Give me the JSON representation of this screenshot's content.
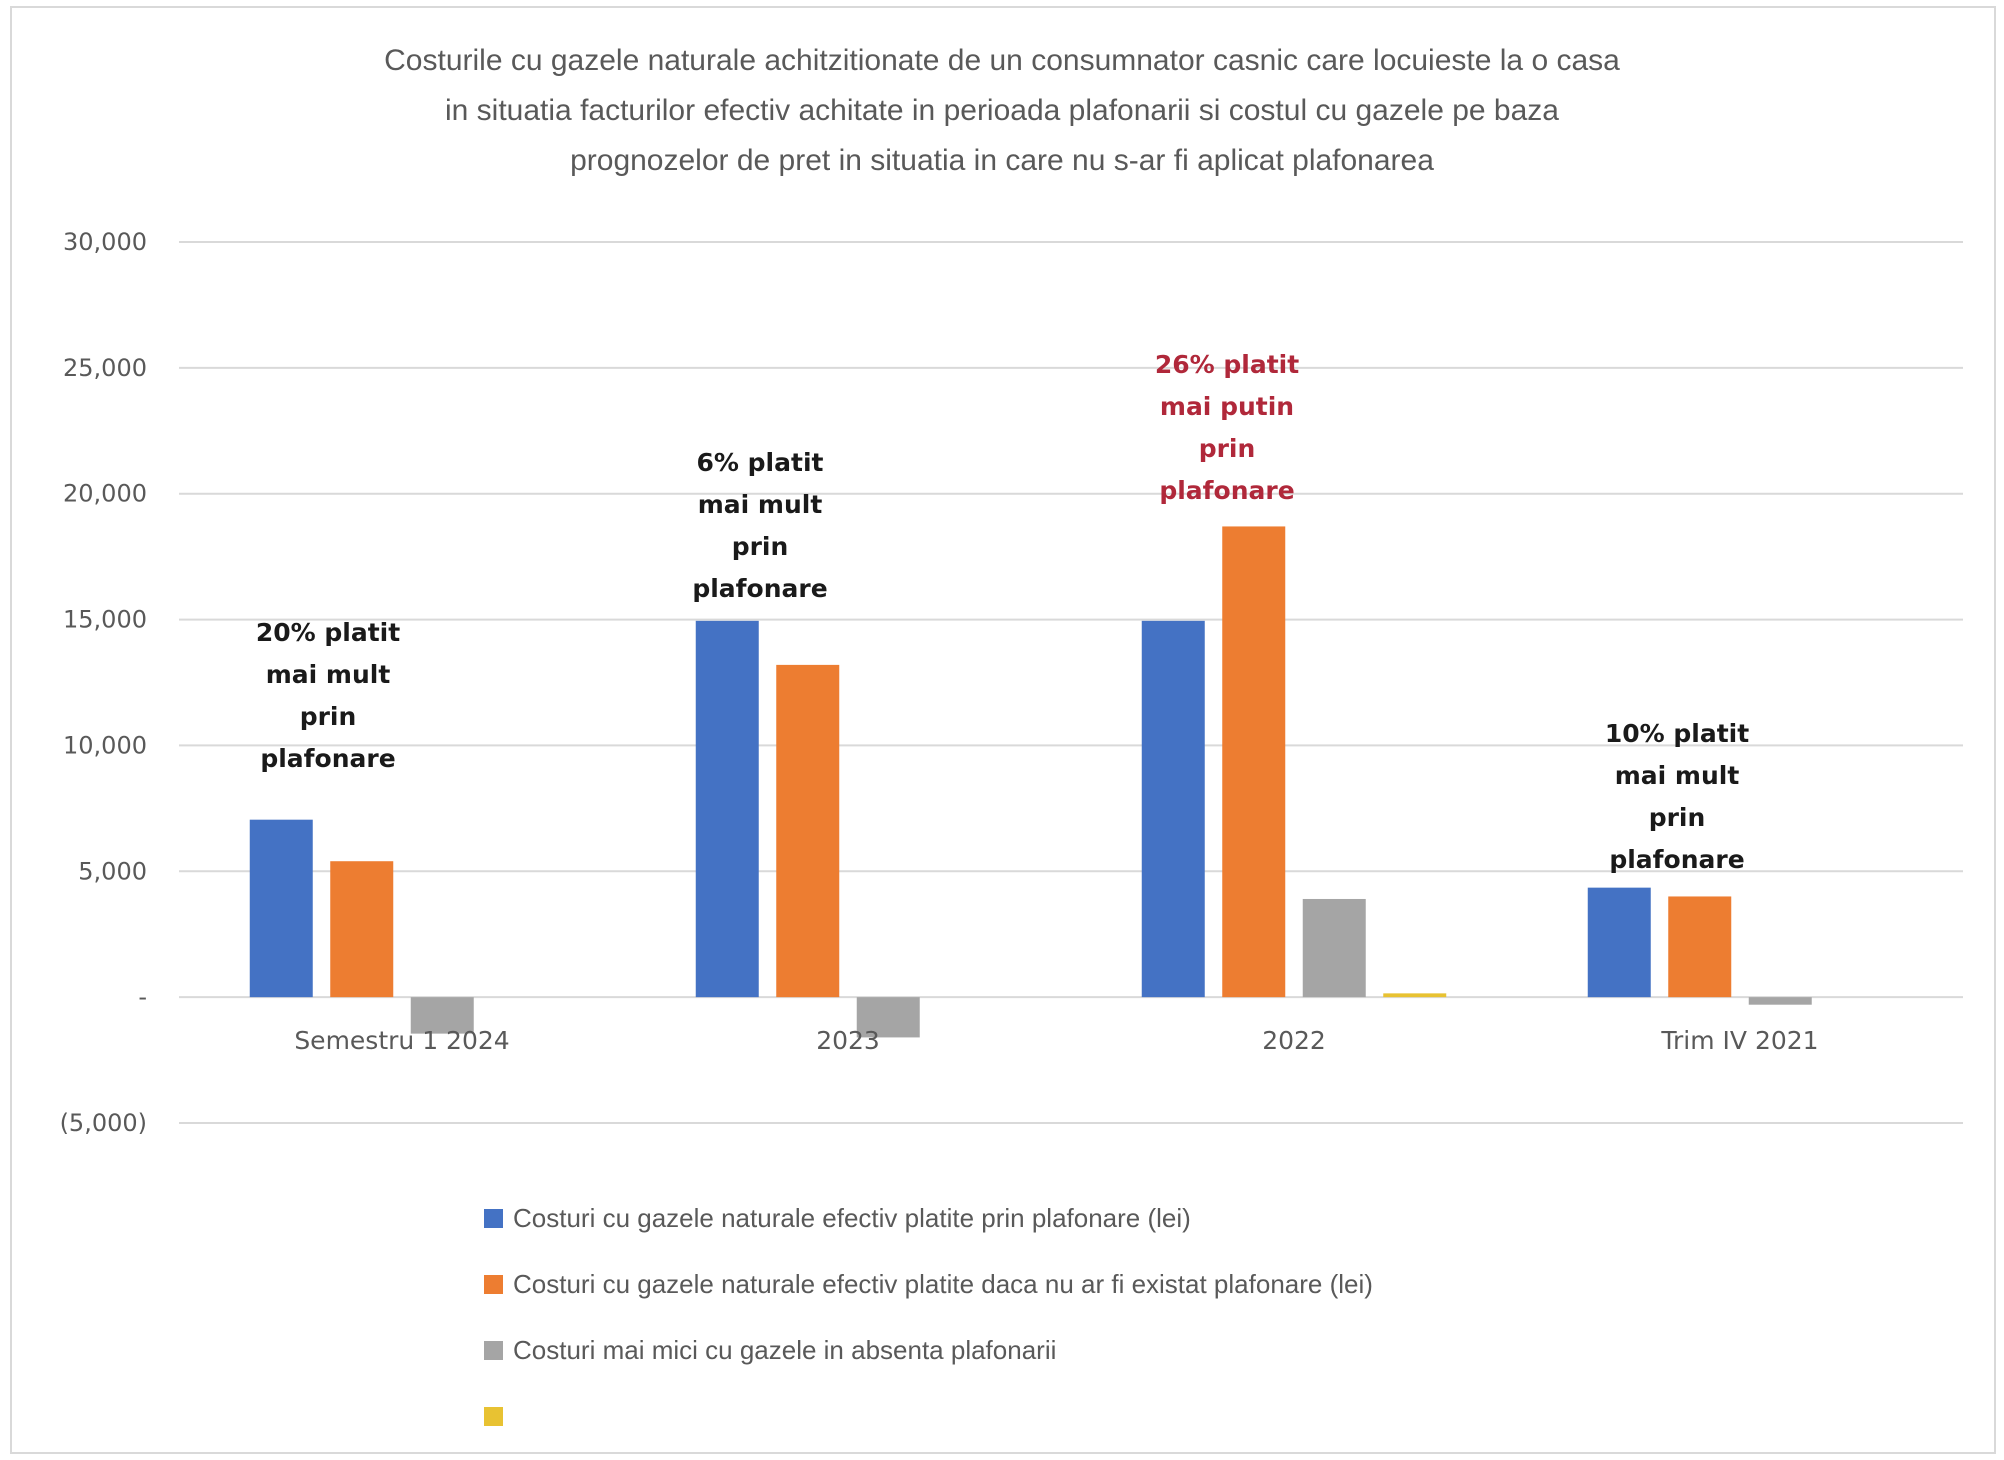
{
  "chart_data": {
    "type": "bar",
    "title_lines": [
      "Costurile cu gazele naturale achitzitionate de un consumnator casnic care locuieste la o casa",
      "in situatia facturilor efectiv achitate in perioada plafonarii si costul cu gazele pe baza",
      "prognozelor de pret in situatia in care nu s-ar fi aplicat  plafonarea"
    ],
    "xlabel": "",
    "ylabel": "",
    "categories": [
      "Semestru 1 2024",
      "2023",
      "2022",
      "Trim IV 2021"
    ],
    "ylim": [
      -5000,
      30000
    ],
    "yticks": [
      30000,
      25000,
      20000,
      15000,
      10000,
      5000,
      0,
      -5000
    ],
    "ytick_labels": [
      "30,000",
      "25,000",
      "20,000",
      "15,000",
      "10,000",
      "5,000",
      "-",
      "(5,000)"
    ],
    "grid": true,
    "legend_position": "bottom",
    "series": [
      {
        "name": "Costuri cu gazele naturale efectiv platite prin plafonare (lei)",
        "color": "#4472C4",
        "values": [
          7050,
          14950,
          14950,
          4350
        ]
      },
      {
        "name": "Costuri cu gazele naturale efectiv platite daca nu ar fi existat plafonare (lei)",
        "color": "#ED7D31",
        "values": [
          5400,
          13200,
          18700,
          4000
        ]
      },
      {
        "name": "Costuri mai mici cu gazele in absenta plafonarii",
        "color": "#A5A5A5",
        "values": [
          -1450,
          -1600,
          3900,
          -300
        ]
      },
      {
        "name": "",
        "color": "#E8C232",
        "values": [
          0,
          0,
          150,
          0
        ]
      }
    ],
    "annotations": [
      {
        "category": "Semestru 1 2024",
        "lines": [
          "20% platit",
          "mai mult",
          "prin",
          "plafonare"
        ],
        "color": "#1a1a1a"
      },
      {
        "category": "2023",
        "lines": [
          "6% platit",
          "mai mult",
          "prin",
          "plafonare"
        ],
        "color": "#1a1a1a"
      },
      {
        "category": "2022",
        "lines": [
          "26% platit",
          "mai putin",
          "prin",
          "plafonare"
        ],
        "color": "#B0283A"
      },
      {
        "category": "Trim IV 2021",
        "lines": [
          "10% platit",
          "mai mult",
          "prin",
          "plafonare"
        ],
        "color": "#1a1a1a"
      }
    ]
  }
}
